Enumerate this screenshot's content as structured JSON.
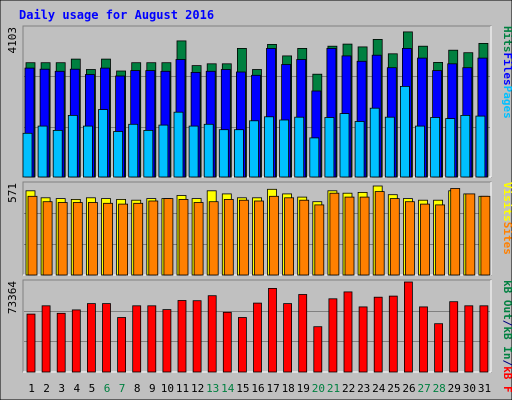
{
  "chart_data": {
    "type": "bar",
    "title": "Daily usage for August 2016",
    "categories": [
      "1",
      "2",
      "3",
      "4",
      "5",
      "6",
      "7",
      "8",
      "9",
      "10",
      "11",
      "12",
      "13",
      "14",
      "15",
      "16",
      "17",
      "18",
      "19",
      "20",
      "21",
      "22",
      "23",
      "24",
      "25",
      "26",
      "27",
      "28",
      "29",
      "30",
      "31"
    ],
    "weekend_days": [
      "6",
      "7",
      "13",
      "14",
      "20",
      "21",
      "27",
      "28"
    ],
    "panels": [
      {
        "id": "hits-files-pages",
        "max_label": "4103",
        "ylim": [
          0,
          4103
        ],
        "legend": [
          {
            "text": "Pages",
            "color": "#00c0ff"
          },
          {
            "text": "Files",
            "color": "#0000ff"
          },
          {
            "text": "Hits",
            "color": "#008040"
          }
        ],
        "series": [
          {
            "name": "Hits",
            "color": "#008040",
            "values": [
              3190,
              3190,
              3190,
              3290,
              3000,
              3290,
              2960,
              3190,
              3190,
              3190,
              3800,
              3110,
              3160,
              3160,
              3590,
              3000,
              3700,
              3380,
              3590,
              2870,
              3650,
              3710,
              3630,
              3840,
              3440,
              4050,
              3650,
              3200,
              3540,
              3470,
              3730
            ]
          },
          {
            "name": "Files",
            "color": "#0000ff",
            "values": [
              3040,
              3010,
              2950,
              3010,
              2860,
              3040,
              2820,
              2970,
              2970,
              2950,
              3280,
              2920,
              2950,
              3000,
              2930,
              2840,
              3590,
              3140,
              3280,
              2400,
              3590,
              3380,
              3230,
              3400,
              3050,
              3590,
              3320,
              2970,
              3160,
              3050,
              3320
            ]
          },
          {
            "name": "Pages",
            "color": "#00c0ff",
            "values": [
              1220,
              1420,
              1300,
              1720,
              1420,
              1880,
              1270,
              1470,
              1300,
              1450,
              1810,
              1420,
              1470,
              1320,
              1320,
              1570,
              1680,
              1590,
              1670,
              1090,
              1660,
              1770,
              1550,
              1920,
              1670,
              2530,
              1420,
              1660,
              1630,
              1720,
              1700
            ]
          }
        ]
      },
      {
        "id": "visits-sites",
        "max_label": "571",
        "ylim": [
          0,
          571
        ],
        "legend": [
          {
            "text": "Sites",
            "color": "#ff8000"
          },
          {
            "text": "Visits",
            "color": "#ffff00"
          }
        ],
        "series": [
          {
            "name": "Visits",
            "color": "#ffff00",
            "values": [
              540,
              495,
              490,
              485,
              495,
              490,
              485,
              480,
              490,
              490,
              510,
              490,
              540,
              520,
              495,
              495,
              550,
              520,
              500,
              470,
              540,
              525,
              530,
              571,
              515,
              490,
              480,
              480,
              540,
              520,
              505
            ]
          },
          {
            "name": "Sites",
            "color": "#ff8000",
            "values": [
              505,
              470,
              465,
              465,
              465,
              460,
              455,
              460,
              475,
              490,
              485,
              465,
              470,
              485,
              480,
              475,
              505,
              495,
              480,
              450,
              525,
              500,
              500,
              535,
              490,
              470,
              455,
              450,
              555,
              520,
              505
            ]
          }
        ]
      },
      {
        "id": "kb",
        "max_label": "73364",
        "ylim": [
          0,
          73364
        ],
        "legend": [
          {
            "text": "kB F",
            "color": "#ff0000"
          },
          {
            "text": "/",
            "color": "#000080"
          },
          {
            "text": "kB In",
            "color": "#008040"
          },
          {
            "text": "/",
            "color": "#000080"
          },
          {
            "text": "kB Out",
            "color": "#008040"
          }
        ],
        "series": [
          {
            "name": "kB F",
            "color": "#ff0000",
            "values": [
              48300,
              55200,
              48900,
              51800,
              57000,
              57000,
              45400,
              55200,
              55200,
              52000,
              59600,
              59400,
              63600,
              49800,
              45400,
              57400,
              69700,
              57000,
              64600,
              37800,
              61000,
              66800,
              54300,
              62400,
              63300,
              75000,
              54300,
              40300,
              58600,
              55200,
              55200
            ]
          }
        ]
      }
    ]
  }
}
